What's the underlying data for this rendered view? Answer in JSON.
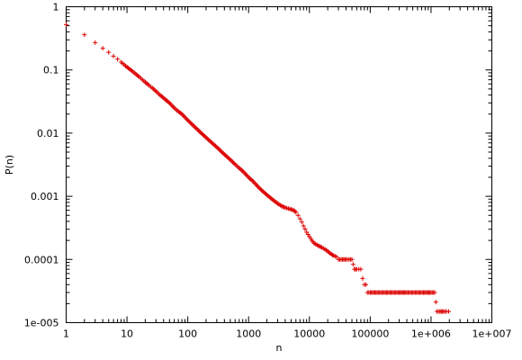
{
  "chart_data": {
    "type": "scatter",
    "title": "",
    "xlabel": "n",
    "ylabel": "P(n)",
    "x_scale": "log",
    "y_scale": "log",
    "xlim": [
      1,
      10000000
    ],
    "ylim": [
      1e-05,
      1
    ],
    "grid": false,
    "legend": "none",
    "x_ticks": [
      {
        "value": 1,
        "label": "1"
      },
      {
        "value": 10,
        "label": "10"
      },
      {
        "value": 100,
        "label": "100"
      },
      {
        "value": 1000,
        "label": "1000"
      },
      {
        "value": 10000,
        "label": "10000"
      },
      {
        "value": 100000,
        "label": "100000"
      },
      {
        "value": 1000000,
        "label": "1e+006"
      },
      {
        "value": 10000000,
        "label": "1e+007"
      }
    ],
    "y_ticks": [
      {
        "value": 1,
        "label": "1"
      },
      {
        "value": 0.1,
        "label": "0.1"
      },
      {
        "value": 0.01,
        "label": "0.01"
      },
      {
        "value": 0.001,
        "label": "0.001"
      },
      {
        "value": 0.0001,
        "label": "0.0001"
      },
      {
        "value": 1e-05,
        "label": "1e-005"
      }
    ],
    "series": [
      {
        "marker": "plus",
        "color": "#dd0000",
        "points": [
          [
            1,
            0.52
          ],
          [
            2,
            0.36
          ],
          [
            3,
            0.27
          ],
          [
            4,
            0.22
          ],
          [
            5,
            0.19
          ],
          [
            6,
            0.165
          ],
          [
            7,
            0.148
          ],
          [
            8,
            0.133
          ],
          [
            9,
            0.121
          ],
          [
            10,
            0.111
          ],
          [
            12,
            0.097
          ],
          [
            14,
            0.086
          ],
          [
            16,
            0.077
          ],
          [
            18,
            0.07
          ],
          [
            20,
            0.064
          ],
          [
            23,
            0.057
          ],
          [
            26,
            0.052
          ],
          [
            30,
            0.046
          ],
          [
            35,
            0.04
          ],
          [
            40,
            0.036
          ],
          [
            50,
            0.03
          ],
          [
            60,
            0.025
          ],
          [
            70,
            0.022
          ],
          [
            80,
            0.02
          ],
          [
            100,
            0.016
          ],
          [
            120,
            0.0135
          ],
          [
            150,
            0.011
          ],
          [
            200,
            0.0085
          ],
          [
            250,
            0.007
          ],
          [
            300,
            0.006
          ],
          [
            400,
            0.0046
          ],
          [
            500,
            0.0038
          ],
          [
            600,
            0.0032
          ],
          [
            700,
            0.0028
          ],
          [
            800,
            0.0025
          ],
          [
            1000,
            0.002
          ],
          [
            1200,
            0.0017
          ],
          [
            1500,
            0.00135
          ],
          [
            2000,
            0.00105
          ],
          [
            2500,
            0.00088
          ],
          [
            3000,
            0.00077
          ],
          [
            3500,
            0.0007
          ],
          [
            4000,
            0.00066
          ],
          [
            4500,
            0.00064
          ],
          [
            5000,
            0.00062
          ],
          [
            5500,
            0.0006
          ],
          [
            6000,
            0.00056
          ],
          [
            6500,
            0.0005
          ],
          [
            7000,
            0.00044
          ],
          [
            7500,
            0.00039
          ],
          [
            8000,
            0.00034
          ],
          [
            9000,
            0.00027
          ],
          [
            10000,
            0.00023
          ],
          [
            11000,
            0.0002
          ],
          [
            12000,
            0.00018
          ],
          [
            14000,
            0.000165
          ],
          [
            16000,
            0.000155
          ],
          [
            18000,
            0.000145
          ],
          [
            20000,
            0.000135
          ],
          [
            22000,
            0.000125
          ],
          [
            25000,
            0.000115
          ],
          [
            28000,
            0.00011
          ],
          [
            30000,
            0.0001
          ],
          [
            35000,
            0.0001
          ],
          [
            40000,
            0.0001
          ],
          [
            45000,
            0.0001
          ],
          [
            50000,
            0.0001
          ],
          [
            55000,
            7e-05
          ],
          [
            60000,
            7e-05
          ],
          [
            65000,
            7e-05
          ],
          [
            70000,
            7e-05
          ],
          [
            75000,
            5e-05
          ],
          [
            80000,
            4e-05
          ],
          [
            85000,
            4e-05
          ],
          [
            90000,
            3e-05
          ],
          [
            100000,
            3e-05
          ],
          [
            130000,
            3e-05
          ],
          [
            170000,
            3e-05
          ],
          [
            220000,
            3e-05
          ],
          [
            300000,
            3e-05
          ],
          [
            400000,
            3e-05
          ],
          [
            550000,
            3e-05
          ],
          [
            750000,
            3e-05
          ],
          [
            1000000,
            3e-05
          ],
          [
            1150000,
            3e-05
          ],
          [
            1250000,
            1.5e-05
          ],
          [
            1400000,
            1.5e-05
          ],
          [
            1600000,
            1.5e-05
          ],
          [
            1800000,
            1.5e-05
          ],
          [
            1950000,
            1.5e-05
          ]
        ]
      }
    ]
  }
}
